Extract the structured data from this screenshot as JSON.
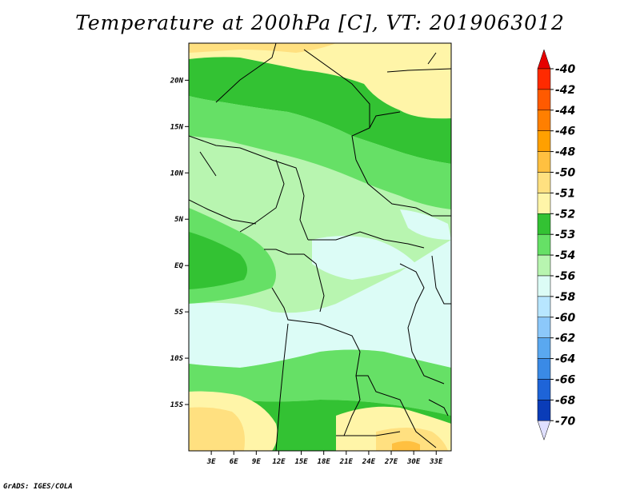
{
  "title": "Temperature at 200hPa [C], VT: 2019063012",
  "credit": "GrADS: IGES/COLA",
  "map": {
    "lon_range": [
      0,
      35
    ],
    "lat_range": [
      -20,
      24
    ],
    "lat_ticks": [
      {
        "value": 20,
        "label": "20N"
      },
      {
        "value": 15,
        "label": "15N"
      },
      {
        "value": 10,
        "label": "10N"
      },
      {
        "value": 5,
        "label": "5N"
      },
      {
        "value": 0,
        "label": "EQ"
      },
      {
        "value": -5,
        "label": "5S"
      },
      {
        "value": -10,
        "label": "10S"
      },
      {
        "value": -15,
        "label": "15S"
      }
    ],
    "lon_ticks": [
      {
        "value": 3,
        "label": "3E"
      },
      {
        "value": 6,
        "label": "6E"
      },
      {
        "value": 9,
        "label": "9E"
      },
      {
        "value": 12,
        "label": "12E"
      },
      {
        "value": 15,
        "label": "15E"
      },
      {
        "value": 18,
        "label": "18E"
      },
      {
        "value": 21,
        "label": "21E"
      },
      {
        "value": 24,
        "label": "24E"
      },
      {
        "value": 27,
        "label": "27E"
      },
      {
        "value": 30,
        "label": "30E"
      },
      {
        "value": 33,
        "label": "33E"
      }
    ]
  },
  "colorbar": {
    "levels": [
      {
        "label": "-40",
        "color": "#ff2a00"
      },
      {
        "label": "-42",
        "color": "#ff5a00"
      },
      {
        "label": "-44",
        "color": "#ff7f00"
      },
      {
        "label": "-46",
        "color": "#ffa000"
      },
      {
        "label": "-48",
        "color": "#ffc040"
      },
      {
        "label": "-50",
        "color": "#ffe080"
      },
      {
        "label": "-51",
        "color": "#fff5a8"
      },
      {
        "label": "-52",
        "color": "#33c233"
      },
      {
        "label": "-53",
        "color": "#66e066"
      },
      {
        "label": "-54",
        "color": "#b8f5b0"
      },
      {
        "label": "-56",
        "color": "#dcfcf6"
      },
      {
        "label": "-58",
        "color": "#b8e6ff"
      },
      {
        "label": "-60",
        "color": "#8cc8fa"
      },
      {
        "label": "-62",
        "color": "#5aa8f0"
      },
      {
        "label": "-64",
        "color": "#3a8ae6"
      },
      {
        "label": "-66",
        "color": "#1e64d8"
      },
      {
        "label": "-68",
        "color": "#0a3cb8"
      },
      {
        "label": "-70",
        "color": "#081c8c"
      }
    ],
    "top_color": "#e60000",
    "bottom_color": "#e0e0ff"
  }
}
